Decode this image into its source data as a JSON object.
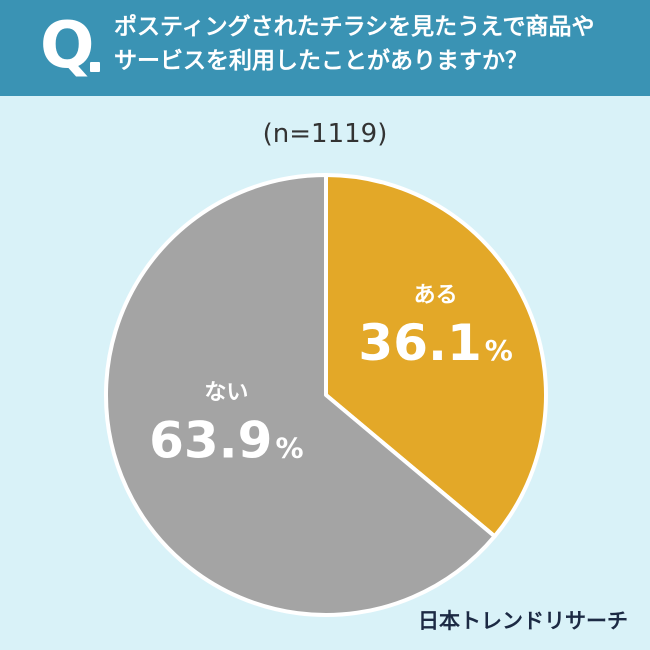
{
  "header": {
    "q_label": "Q",
    "question_line1": "ポスティングされたチラシを見たうえで商品や",
    "question_line2": "サービスを利用したことがありますか？"
  },
  "sample_size": "(n=1119)",
  "colors": {
    "background": "#d9f2f8",
    "header": "#3a93b4",
    "yes": "#e3a828",
    "no": "#a4a4a4"
  },
  "chart_data": {
    "type": "pie",
    "title": "ポスティングされたチラシを見たうえで商品やサービスを利用したことがありますか？",
    "n": 1119,
    "labels": [
      "ある",
      "ない"
    ],
    "values": [
      36.1,
      63.9
    ],
    "value_labels": [
      "36.1",
      "63.9"
    ],
    "unit": "%",
    "colors": [
      "#e3a828",
      "#a4a4a4"
    ],
    "start_angle_deg": 0,
    "direction": "clockwise"
  },
  "brand": {
    "logo_text": "日本トレンドリサーチ"
  }
}
